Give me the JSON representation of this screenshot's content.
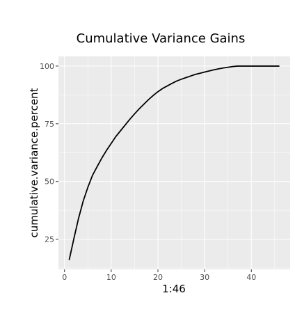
{
  "chart_data": {
    "type": "line",
    "title": "Cumulative Variance Gains",
    "xlabel": "1:46",
    "ylabel": "cumulative.variance.percent",
    "xlim": [
      -1.3,
      48.3
    ],
    "ylim": [
      11.9,
      104.2
    ],
    "x_ticks": [
      0,
      10,
      20,
      30,
      40
    ],
    "x_tick_labels": [
      "0",
      "10",
      "20",
      "30",
      "40"
    ],
    "y_ticks": [
      25,
      50,
      75,
      100
    ],
    "y_tick_labels": [
      "25",
      "50",
      "75",
      "100"
    ],
    "grid": true,
    "panel_background": "#ebebeb",
    "grid_color": "#ffffff",
    "line_color": "#000000",
    "series": [
      {
        "x": [
          1,
          2,
          3,
          4,
          5,
          6,
          7,
          8,
          9,
          10,
          11,
          12,
          13,
          14,
          15,
          16,
          17,
          18,
          19,
          20,
          21,
          22,
          23,
          24,
          25,
          26,
          27,
          28,
          29,
          30,
          31,
          32,
          33,
          34,
          35,
          36,
          37,
          38,
          39,
          40,
          41,
          42,
          43,
          44,
          45,
          46
        ],
        "values": [
          16.0,
          25.2,
          34.0,
          41.5,
          47.5,
          52.7,
          56.5,
          60.2,
          63.5,
          66.5,
          69.5,
          72.0,
          74.5,
          77.0,
          79.3,
          81.5,
          83.5,
          85.5,
          87.3,
          88.9,
          90.3,
          91.4,
          92.5,
          93.5,
          94.3,
          95.0,
          95.7,
          96.4,
          96.9,
          97.4,
          97.9,
          98.4,
          98.8,
          99.2,
          99.5,
          99.8,
          100.0,
          100.0,
          100.0,
          100.0,
          100.0,
          100.0,
          100.0,
          100.0,
          100.0,
          100.0
        ]
      }
    ]
  }
}
